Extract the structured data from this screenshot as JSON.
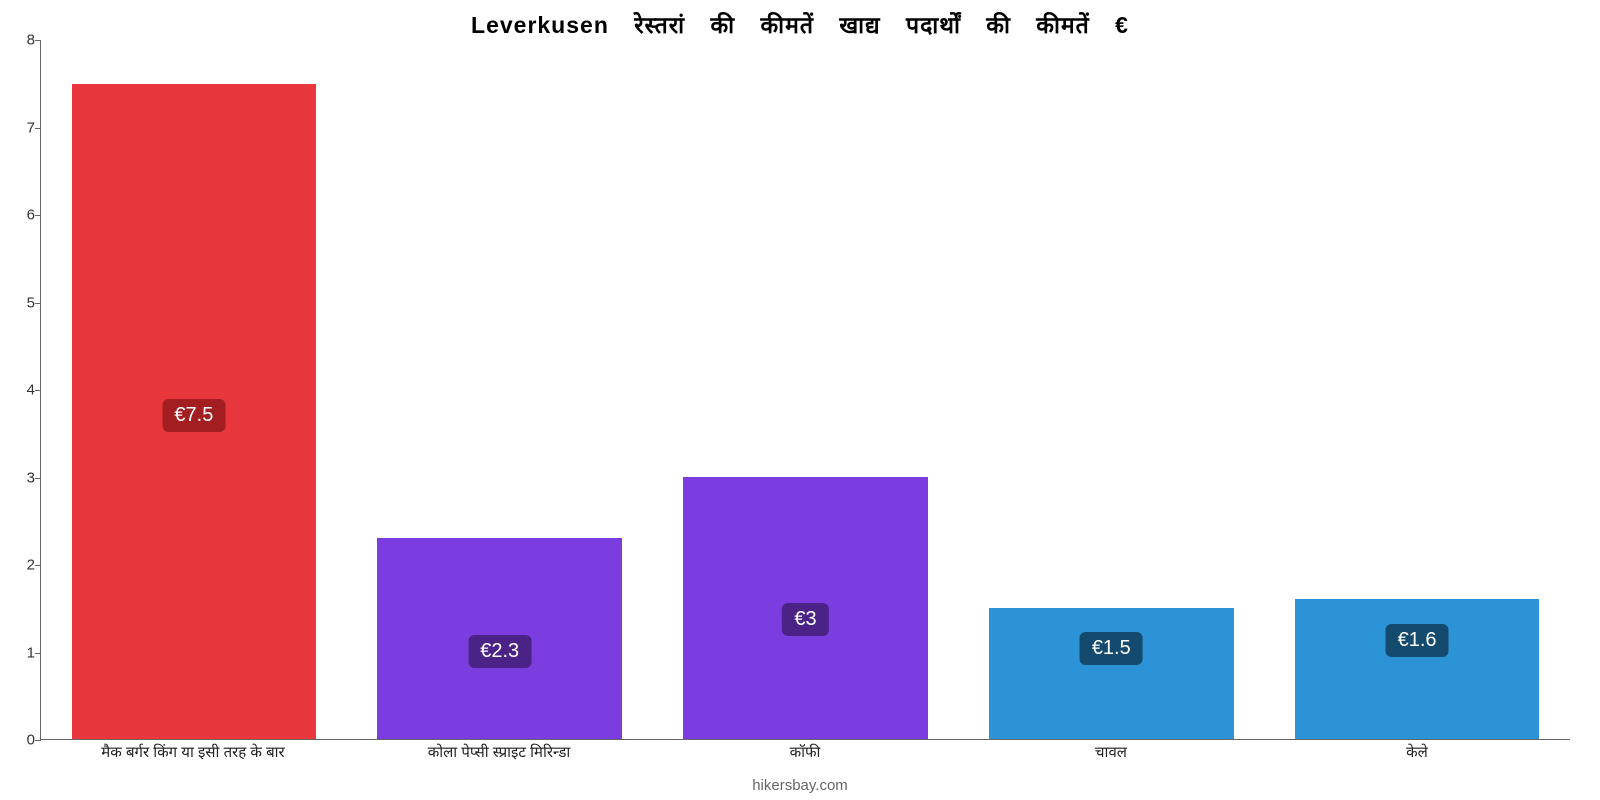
{
  "chart": {
    "type": "bar",
    "title": "Leverkusen रेस्तरां की कीमतें खाद्य पदार्थों की कीमतें €",
    "title_fontsize": 23,
    "label_fontsize": 15,
    "value_label_fontsize": 20,
    "background_color": "#ffffff",
    "axis_color": "#666666",
    "text_color": "#222222",
    "ylim": [
      0,
      8
    ],
    "ytick_step": 1,
    "bar_width_pct": 80,
    "categories": [
      "मैक बर्गर किंग या इसी तरह के बार",
      "कोला पेप्सी स्प्राइट मिरिन्डा",
      "कॉफी",
      "चावल",
      "केले"
    ],
    "values": [
      7.5,
      2.3,
      3,
      1.5,
      1.6
    ],
    "value_labels": [
      "€7.5",
      "€2.3",
      "€3",
      "€1.5",
      "€1.6"
    ],
    "bar_colors": [
      "#e8373c",
      "#7b3ce0",
      "#7b3ce0",
      "#2b93d6",
      "#2b93d6"
    ],
    "badge_bg_colors": [
      "#a31e21",
      "#4b2387",
      "#4b2387",
      "#134a6e",
      "#134a6e"
    ],
    "credit": "hikersbay.com",
    "credit_color": "#888888"
  }
}
